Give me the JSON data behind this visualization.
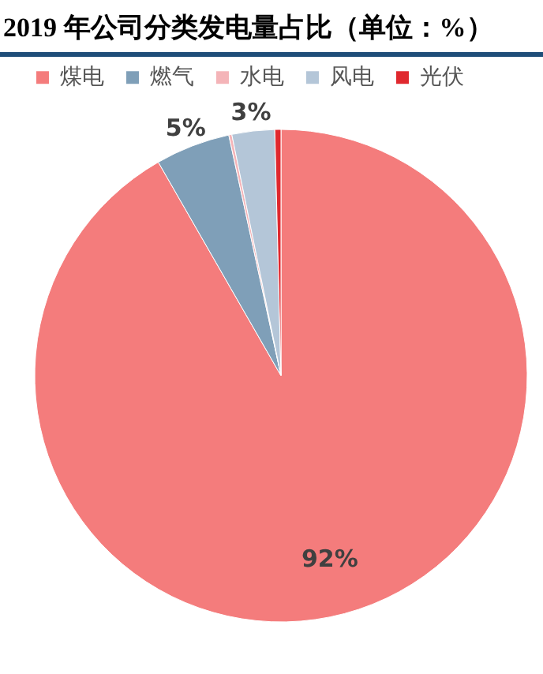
{
  "chart_data": {
    "type": "pie",
    "title": "2019 年公司分类发电量占比（单位：%）",
    "categories": [
      "煤电",
      "燃气",
      "水电",
      "风电",
      "光伏"
    ],
    "values": [
      91.7,
      4.9,
      0.2,
      2.8,
      0.4
    ],
    "colors": [
      "#f47c7c",
      "#7f9fb8",
      "#f4b4b8",
      "#b4c6d8",
      "#e0282e"
    ],
    "value_labels": [
      "92%",
      "5%",
      null,
      "3%",
      null
    ],
    "legend": "top"
  }
}
